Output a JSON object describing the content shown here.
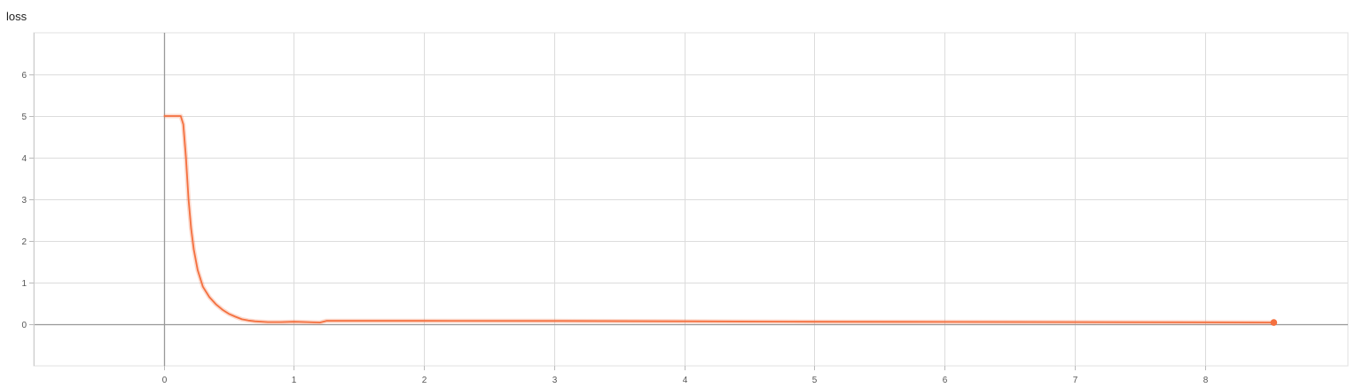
{
  "chart_data": {
    "type": "line",
    "title": "loss",
    "xlabel": "",
    "ylabel": "",
    "xlim": [
      -1,
      9.1
    ],
    "ylim": [
      -1,
      7
    ],
    "xticks": [
      "0",
      "1",
      "2",
      "3",
      "4",
      "5",
      "6",
      "7",
      "8"
    ],
    "yticks": [
      "0",
      "1",
      "2",
      "3",
      "4",
      "5",
      "6"
    ],
    "grid": true,
    "series_color": "#f4703f",
    "series": [
      {
        "x": [
          0,
          0.05,
          0.1,
          0.13,
          0.15,
          0.17,
          0.19,
          0.21,
          0.23,
          0.26,
          0.3,
          0.35,
          0.4,
          0.45,
          0.5,
          0.55,
          0.6,
          0.65,
          0.7,
          0.8,
          0.9,
          1.0,
          1.1,
          1.2,
          1.25,
          2,
          3,
          4,
          5,
          6,
          7,
          8,
          8.53
        ],
        "y": [
          5.0,
          5.0,
          5.0,
          5.0,
          4.8,
          4.0,
          3.0,
          2.3,
          1.8,
          1.3,
          0.9,
          0.65,
          0.48,
          0.35,
          0.25,
          0.18,
          0.12,
          0.09,
          0.07,
          0.05,
          0.05,
          0.06,
          0.05,
          0.04,
          0.08,
          0.08,
          0.078,
          0.07,
          0.06,
          0.055,
          0.05,
          0.045,
          0.04
        ]
      }
    ]
  }
}
